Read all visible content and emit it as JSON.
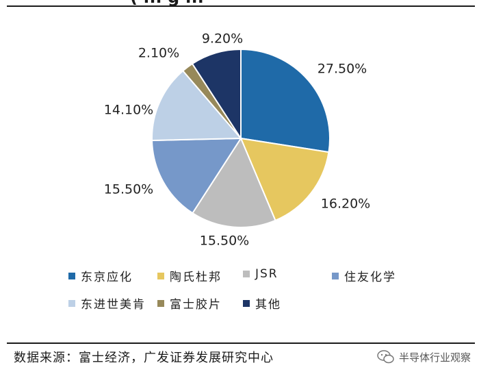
{
  "header": {
    "title_fragment": "( ... g ..."
  },
  "chart_data": {
    "type": "pie",
    "slices": [
      {
        "name": "东京应化",
        "value": 27.5,
        "label": "27.50%",
        "color": "#1f6aa8"
      },
      {
        "name": "陶氏杜邦",
        "value": 16.2,
        "label": "16.20%",
        "color": "#e6c75f"
      },
      {
        "name": "JSR",
        "value": 15.5,
        "label": "15.50%",
        "color": "#bdbdbd"
      },
      {
        "name": "住友化学",
        "value": 15.5,
        "label": "15.50%",
        "color": "#7698c9"
      },
      {
        "name": "东进世美肯",
        "value": 14.1,
        "label": "14.10%",
        "color": "#bdd0e6"
      },
      {
        "name": "富士胶片",
        "value": 2.1,
        "label": "2.10%",
        "color": "#97895a"
      },
      {
        "name": "其他",
        "value": 9.2,
        "label": "9.20%",
        "color": "#1d3566"
      }
    ]
  },
  "footer": {
    "source": "数据来源：富士经济，广发证券发展研究中心",
    "watermark": "半导体行业观察"
  }
}
